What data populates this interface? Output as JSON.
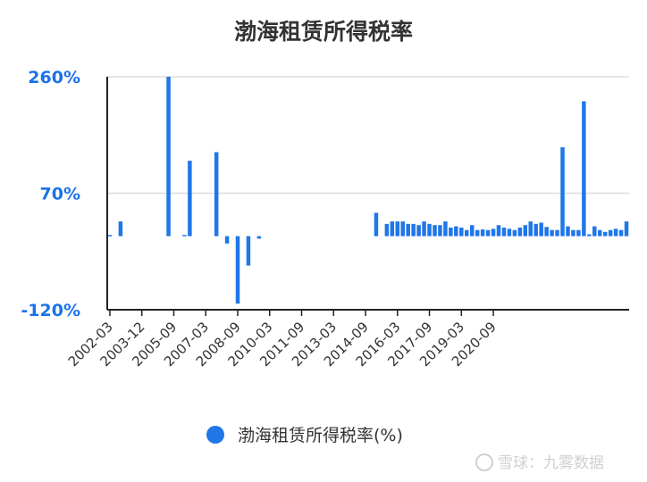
{
  "chart_data": {
    "type": "bar",
    "title": "渤海租赁所得税率",
    "xlabel": "",
    "ylabel": "",
    "ylim": [
      -120,
      260
    ],
    "yticks": [
      260,
      70,
      -120
    ],
    "ytick_labels": [
      "260%",
      "70%",
      "-120%"
    ],
    "grid": true,
    "legend_position": "bottom",
    "color": "#1f77e8",
    "x_tick_labels": [
      "2002-03",
      "2003-12",
      "2005-09",
      "2007-03",
      "2008-09",
      "2010-03",
      "2011-09",
      "2013-03",
      "2014-09",
      "2016-03",
      "2017-09",
      "2019-03",
      "2020-09"
    ],
    "series": [
      {
        "name": "渤海租赁所得税率(%)",
        "values": [
          2,
          null,
          24,
          null,
          null,
          null,
          null,
          null,
          null,
          null,
          null,
          260,
          null,
          null,
          2,
          123,
          null,
          null,
          null,
          null,
          137,
          null,
          -12,
          null,
          -110,
          null,
          -48,
          null,
          -4,
          null,
          null,
          null,
          null,
          null,
          null,
          null,
          null,
          null,
          null,
          null,
          null,
          null,
          null,
          null,
          null,
          null,
          null,
          null,
          null,
          null,
          38,
          null,
          20,
          24,
          24,
          24,
          20,
          20,
          18,
          24,
          20,
          18,
          18,
          24,
          14,
          16,
          14,
          10,
          18,
          10,
          11,
          10,
          12,
          18,
          14,
          12,
          10,
          14,
          18,
          24,
          20,
          22,
          15,
          10,
          10,
          145,
          16,
          10,
          10,
          220,
          3,
          16,
          10,
          7,
          10,
          12,
          10,
          24
        ]
      }
    ]
  },
  "legend": {
    "label": "渤海租赁所得税率(%)"
  },
  "watermark": "雪球：九雾数据"
}
